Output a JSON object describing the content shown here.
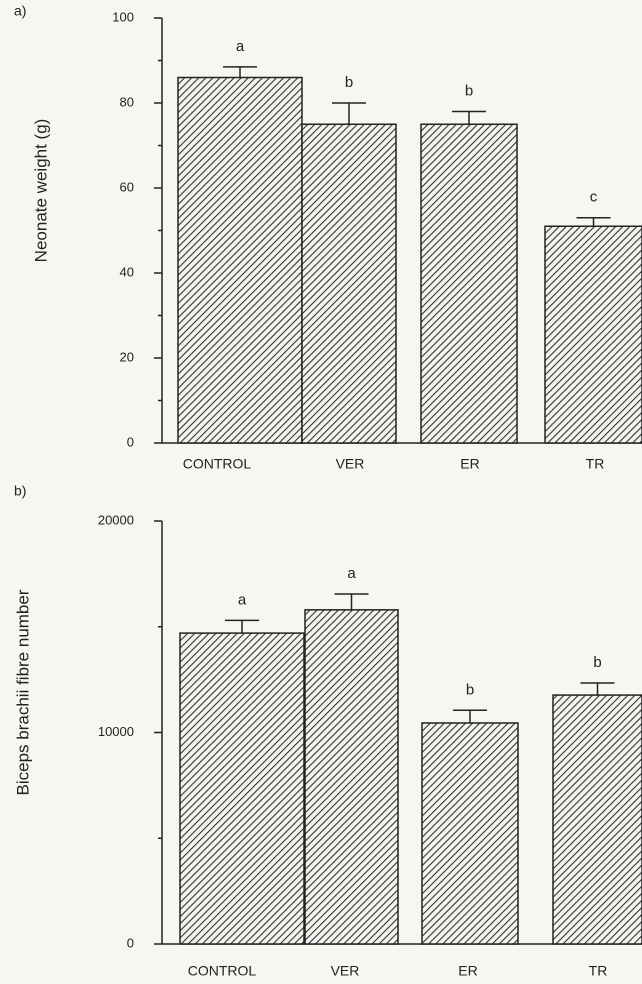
{
  "chart_data": [
    {
      "type": "bar",
      "panel_label": "a)",
      "ylabel": "Neonate weight (g)",
      "categories": [
        "CONTROL",
        "VER",
        "ER",
        "TR"
      ],
      "values": [
        86,
        75,
        75,
        51
      ],
      "errors": [
        2.5,
        5,
        3,
        2
      ],
      "annotations": [
        "a",
        "b",
        "b",
        "c"
      ],
      "ylim": [
        0,
        100
      ],
      "yticks": [
        0,
        20,
        40,
        60,
        80,
        100
      ],
      "yminor_ticks": [
        10,
        30,
        50,
        70,
        90
      ],
      "color": "#555555"
    },
    {
      "type": "bar",
      "panel_label": "b)",
      "ylabel": "Biceps brachii fibre number",
      "categories": [
        "CONTROL",
        "VER",
        "ER",
        "TR"
      ],
      "values": [
        14700,
        15800,
        10450,
        11770
      ],
      "errors": [
        600,
        750,
        600,
        570
      ],
      "annotations": [
        "a",
        "a",
        "b",
        "b"
      ],
      "ylim": [
        0,
        20000
      ],
      "yticks": [
        0,
        10000,
        20000
      ],
      "yminor_ticks": [
        5000,
        15000
      ],
      "color": "#555555"
    }
  ]
}
